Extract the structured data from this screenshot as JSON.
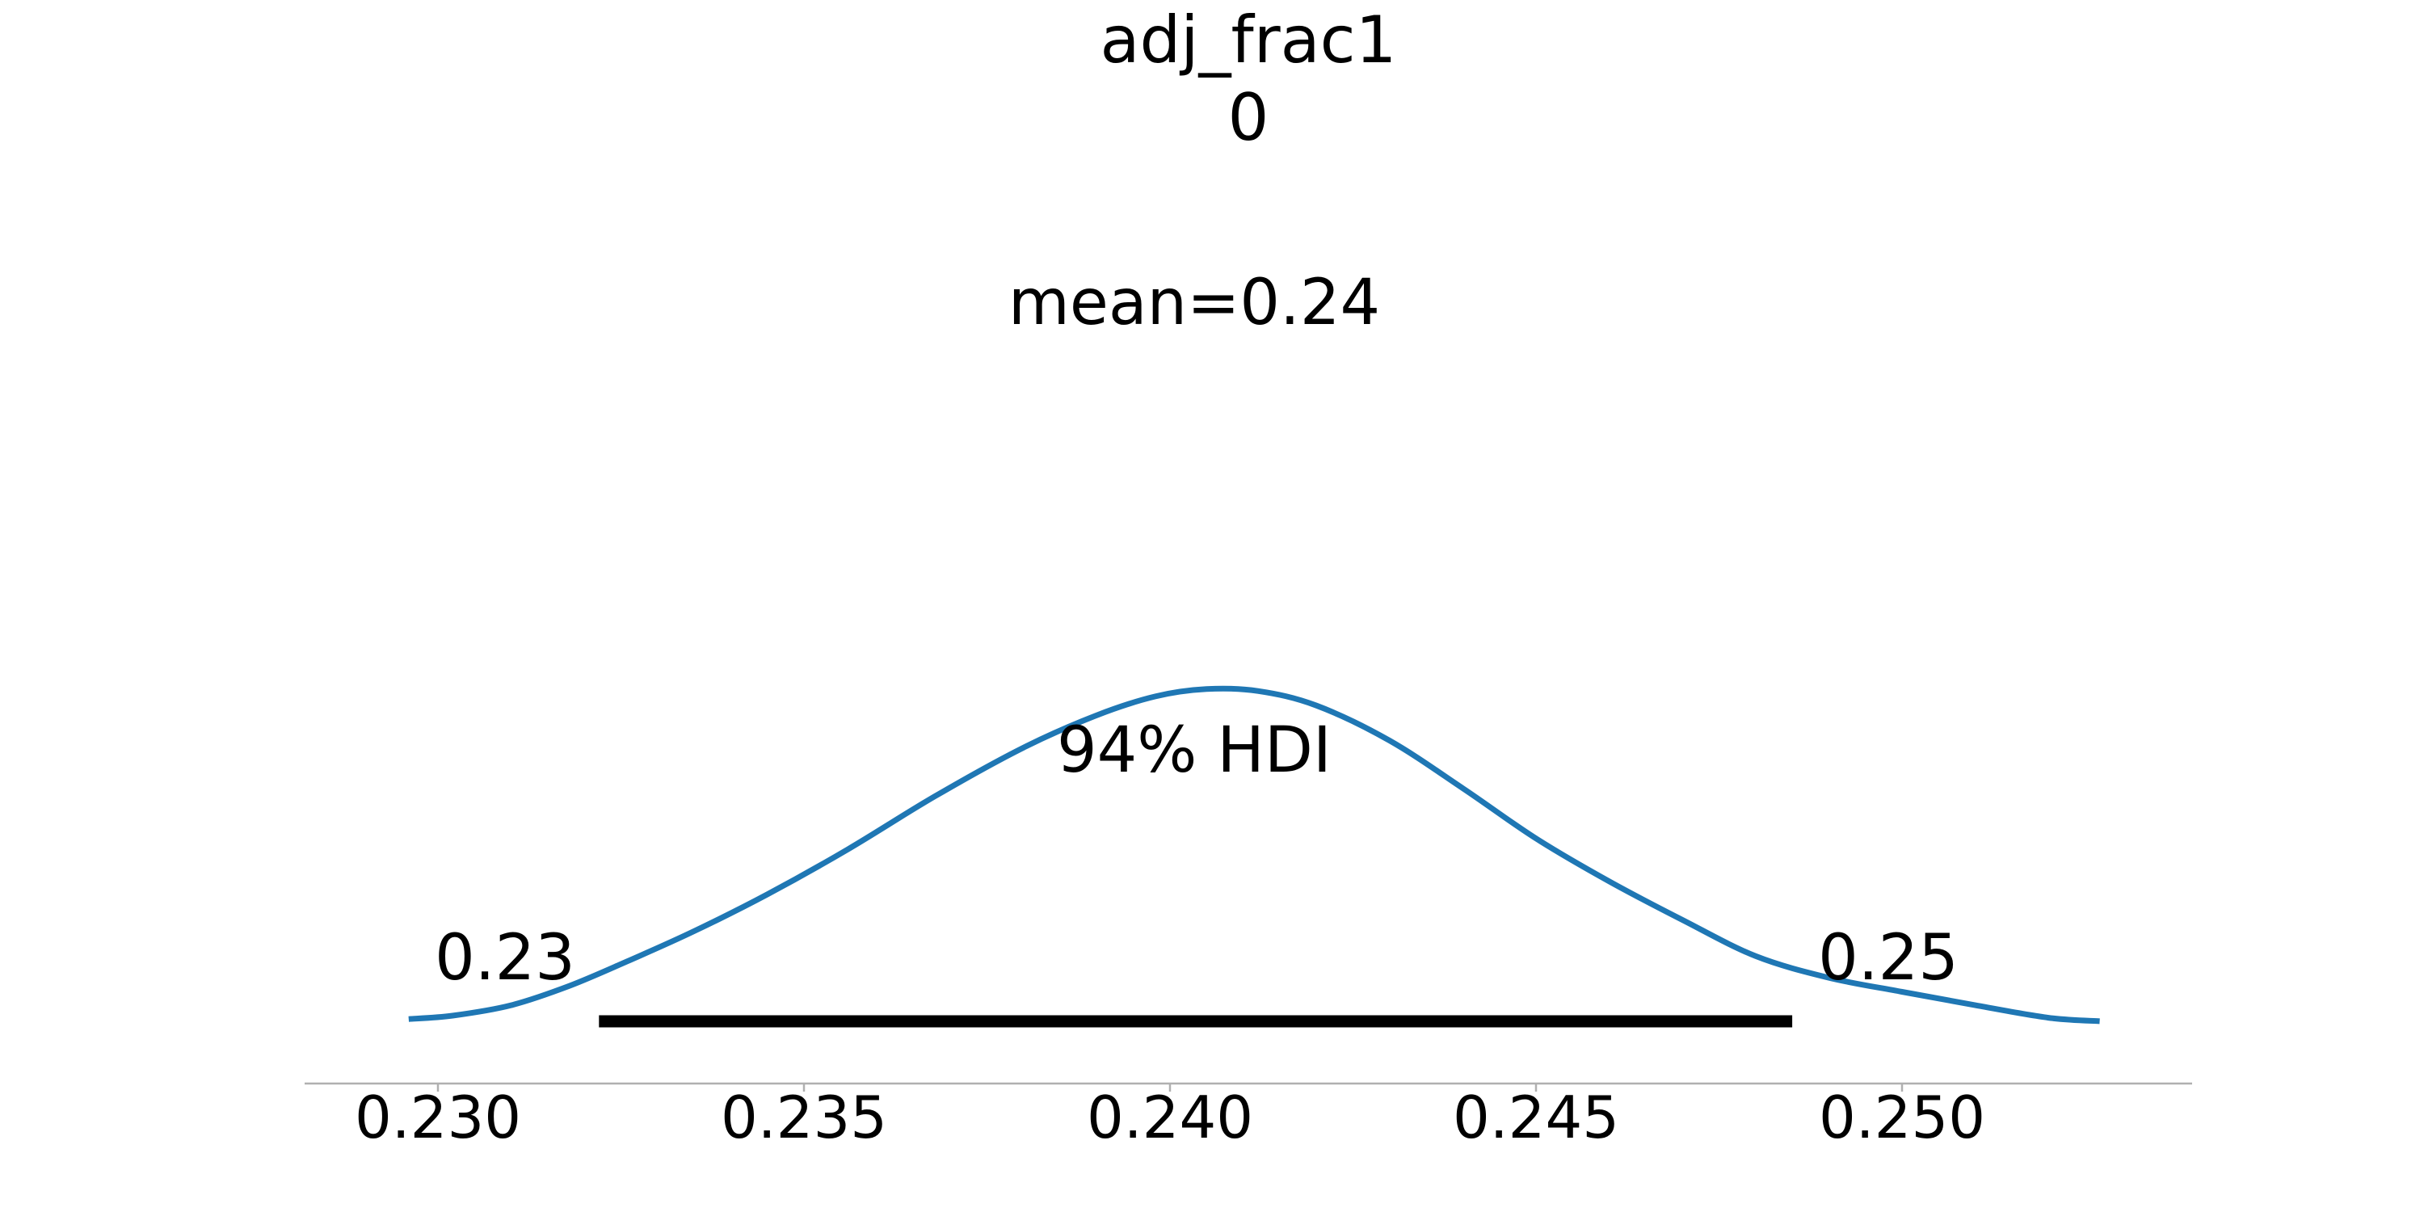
{
  "chart_data": {
    "type": "line",
    "title": "adj_frac1",
    "subtitle": "0",
    "xlabel": "",
    "ylabel": "",
    "xlim": [
      0.2285,
      0.2535
    ],
    "x_ticks": [
      0.23,
      0.235,
      0.24,
      0.245,
      0.25
    ],
    "x_tick_labels": [
      "0.230",
      "0.235",
      "0.240",
      "0.245",
      "0.250"
    ],
    "y_axis_visible": false,
    "grid": false,
    "legend": "none",
    "series": [
      {
        "color": "#1f77b4",
        "x": [
          0.2296,
          0.2302,
          0.231,
          0.2318,
          0.2326,
          0.2335,
          0.2345,
          0.2356,
          0.2368,
          0.238,
          0.239,
          0.2398,
          0.2405,
          0.2412,
          0.242,
          0.243,
          0.244,
          0.245,
          0.246,
          0.247,
          0.248,
          0.249,
          0.25,
          0.251,
          0.252,
          0.2527
        ],
        "y": [
          0.014,
          0.03,
          0.078,
          0.168,
          0.283,
          0.42,
          0.59,
          0.798,
          1.045,
          1.268,
          1.417,
          1.504,
          1.538,
          1.529,
          1.462,
          1.3,
          1.08,
          0.848,
          0.65,
          0.472,
          0.305,
          0.205,
          0.14,
          0.078,
          0.02,
          0.004
        ]
      }
    ],
    "annotations": {
      "mean_label": "mean=0.24",
      "hdi_label": "94% HDI",
      "hdi_lower_label": "0.23",
      "hdi_upper_label": "0.25",
      "hdi_interval": [
        0.2322,
        0.2485
      ],
      "hdi_bar_color": "#000000"
    }
  }
}
